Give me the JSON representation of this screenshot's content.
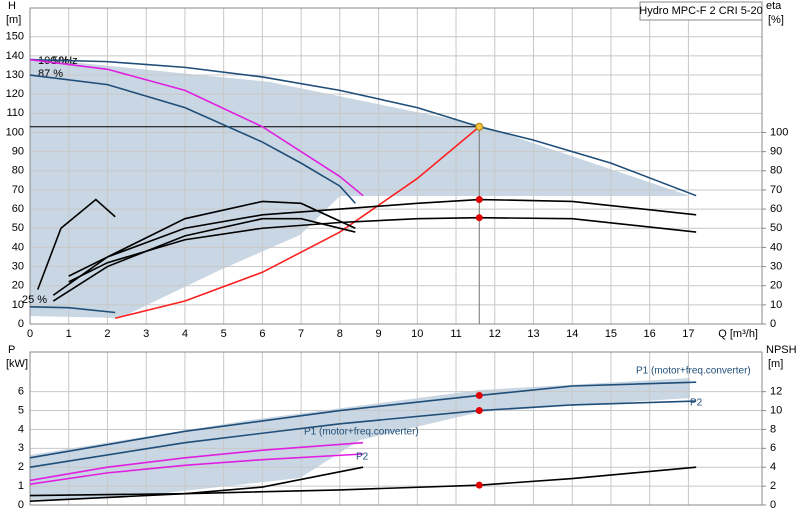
{
  "chart_data": [
    {
      "type": "line",
      "title": "Hydro MPC-F 2 CRI 5-20",
      "xlabel": "Q [m³/h]",
      "ylabel": "H",
      "yunit": "[m]",
      "y2label": "eta",
      "y2unit": "[%]",
      "xlim": [
        0,
        18.9
      ],
      "xticks": [
        0,
        1,
        2,
        3,
        4,
        5,
        6,
        7,
        8,
        9,
        10,
        11,
        12,
        13,
        14,
        15,
        16,
        17
      ],
      "ylim": [
        0,
        165
      ],
      "yticks": [
        0,
        10,
        20,
        30,
        40,
        50,
        60,
        70,
        80,
        90,
        100,
        110,
        120,
        130,
        140,
        150
      ],
      "y2lim": [
        0,
        165
      ],
      "y2ticks": [
        0,
        10,
        20,
        30,
        40,
        50,
        60,
        70,
        80,
        90,
        100
      ],
      "grid": true,
      "annotations": [
        "100 %",
        "50Hz",
        "87 %",
        "25 %"
      ],
      "series": [
        {
          "color": "#1f4e79",
          "x": [
            0,
            2,
            4,
            6,
            8,
            10,
            11.6,
            13,
            15,
            17.2
          ],
          "values": [
            138,
            137,
            134,
            129,
            122,
            113,
            103,
            96,
            84,
            67
          ]
        },
        {
          "color": "#1f4e79",
          "x": [
            0,
            2,
            4,
            6,
            7,
            8,
            8.4
          ],
          "values": [
            130,
            125,
            113,
            95,
            84,
            72,
            63
          ]
        },
        {
          "color": "#e020e0",
          "x": [
            0,
            2,
            4,
            6,
            8,
            8.6
          ],
          "values": [
            138,
            133,
            122,
            103,
            77,
            67
          ]
        },
        {
          "color": "#1f4e79",
          "x": [
            0,
            1,
            2.2
          ],
          "values": [
            9,
            8.5,
            6
          ]
        },
        {
          "color": "#ff2020",
          "x": [
            2.2,
            4,
            6,
            8,
            10,
            11.6
          ],
          "values": [
            3,
            12,
            27,
            48,
            76,
            103
          ]
        },
        {
          "color": "#000000",
          "axis": "y2",
          "x": [
            1,
            2,
            4,
            6,
            8,
            10,
            11.6,
            14,
            17.2
          ],
          "values": [
            25,
            35,
            50,
            57,
            60,
            63,
            65,
            64,
            57
          ]
        },
        {
          "color": "#000000",
          "axis": "y2",
          "x": [
            1,
            2,
            4,
            6,
            8,
            10,
            11.6,
            14,
            17.2
          ],
          "values": [
            22,
            32,
            44,
            50,
            53,
            55,
            55.5,
            55,
            48
          ]
        },
        {
          "color": "#000000",
          "axis": "y2",
          "x": [
            0.6,
            2,
            4,
            6,
            7,
            8.4
          ],
          "values": [
            15,
            35,
            55,
            64,
            63,
            50
          ]
        },
        {
          "color": "#000000",
          "axis": "y2",
          "x": [
            0.6,
            2,
            4,
            6,
            7,
            8.4
          ],
          "values": [
            12,
            30,
            46,
            55,
            55,
            48
          ]
        },
        {
          "color": "#000000",
          "axis": "y2",
          "x": [
            0.2,
            0.8,
            1.7,
            2.2
          ],
          "values": [
            18,
            50,
            65,
            56
          ]
        }
      ],
      "points": [
        {
          "x": 11.6,
          "y": 103,
          "color": "#f5c242"
        },
        {
          "x": 11.6,
          "y": 65,
          "color": "#e00000",
          "axis": "y2"
        },
        {
          "x": 11.6,
          "y": 55.5,
          "color": "#e00000",
          "axis": "y2"
        }
      ]
    },
    {
      "type": "line",
      "ylabel": "P",
      "yunit": "[kW]",
      "y2label": "NPSH",
      "y2unit": "[m]",
      "xlim": [
        0,
        18.9
      ],
      "xticks": [
        0,
        1,
        2,
        3,
        4,
        5,
        6,
        7,
        8,
        9,
        10,
        11,
        12,
        13,
        14,
        15,
        16,
        17
      ],
      "ylim": [
        0,
        8.1
      ],
      "yticks": [
        0,
        1,
        2,
        3,
        4,
        5,
        6
      ],
      "y2lim": [
        0,
        16.2
      ],
      "y2ticks": [
        0,
        2,
        4,
        6,
        8,
        10,
        12
      ],
      "grid": true,
      "series": [
        {
          "name": "P1 (motor+freq.converter)",
          "color": "#1f4e79",
          "x": [
            0,
            4,
            8,
            11.6,
            14,
            17.2
          ],
          "values": [
            2.5,
            3.9,
            5.0,
            5.8,
            6.3,
            6.5
          ]
        },
        {
          "name": "P2",
          "color": "#1f4e79",
          "x": [
            0,
            4,
            8,
            11.6,
            14,
            17.2
          ],
          "values": [
            2.0,
            3.3,
            4.3,
            5.0,
            5.3,
            5.5
          ]
        },
        {
          "name": "P1 (motor+freq.converter)",
          "color": "#e020e0",
          "x": [
            0,
            2,
            4,
            6,
            8.6
          ],
          "values": [
            1.3,
            2.0,
            2.5,
            2.9,
            3.3
          ]
        },
        {
          "name": "P2",
          "color": "#e020e0",
          "x": [
            0,
            2,
            4,
            6,
            8.6
          ],
          "values": [
            1.1,
            1.7,
            2.1,
            2.4,
            2.7
          ]
        },
        {
          "color": "#000000",
          "axis": "y2",
          "x": [
            0,
            4,
            8,
            11.6,
            14,
            17.2
          ],
          "values": [
            1.0,
            1.2,
            1.6,
            2.1,
            2.8,
            4.0
          ]
        },
        {
          "color": "#000000",
          "axis": "y2",
          "x": [
            0,
            4,
            6,
            8.6
          ],
          "values": [
            0.4,
            1.2,
            1.9,
            4.0
          ]
        }
      ],
      "points": [
        {
          "x": 11.6,
          "y": 5.8,
          "color": "#e00000"
        },
        {
          "x": 11.6,
          "y": 5.0,
          "color": "#e00000"
        },
        {
          "x": 11.6,
          "y": 2.1,
          "color": "#e00000",
          "axis": "y2"
        }
      ]
    }
  ]
}
